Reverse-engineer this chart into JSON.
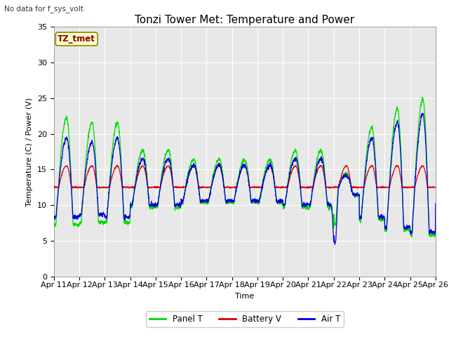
{
  "title": "Tonzi Tower Met: Temperature and Power",
  "subtitle": "No data for f_sys_volt",
  "annotation": "TZ_tmet",
  "xlabel": "Time",
  "ylabel": "Temperature (C) / Power (V)",
  "ylim": [
    0,
    35
  ],
  "yticks": [
    0,
    5,
    10,
    15,
    20,
    25,
    30,
    35
  ],
  "xtick_labels": [
    "Apr 11",
    "Apr 12",
    "Apr 13",
    "Apr 14",
    "Apr 15",
    "Apr 16",
    "Apr 17",
    "Apr 18",
    "Apr 19",
    "Apr 20",
    "Apr 21",
    "Apr 22",
    "Apr 23",
    "Apr 24",
    "Apr 25",
    "Apr 26"
  ],
  "panel_color": "#00dd00",
  "battery_color": "#dd0000",
  "air_color": "#0000dd",
  "fig_bg_color": "#ffffff",
  "plot_bg_color": "#e8e8e8",
  "legend_labels": [
    "Panel T",
    "Battery V",
    "Air T"
  ],
  "grid_color": "#ffffff",
  "title_fontsize": 11,
  "axis_fontsize": 8,
  "tick_fontsize": 8,
  "annotation_color": "#880000",
  "annotation_bg": "#ffffcc",
  "annotation_edge": "#888800"
}
